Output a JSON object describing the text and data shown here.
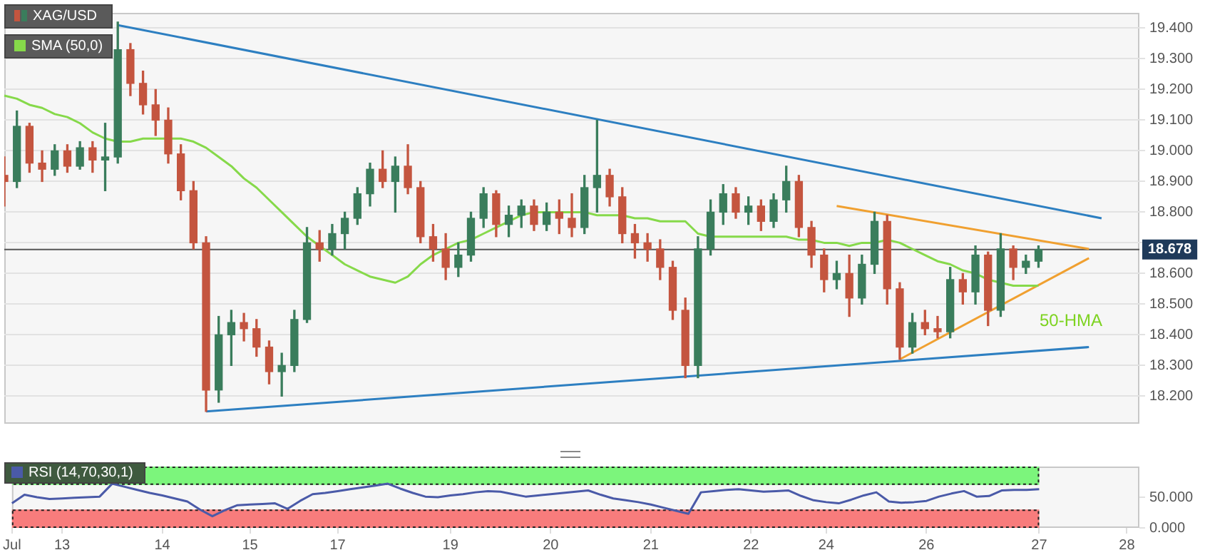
{
  "chart_data": [
    {
      "type": "candlestick",
      "ylim": [
        18.11,
        19.45
      ],
      "categories": [
        null,
        null,
        null,
        null,
        null,
        null,
        null,
        null,
        null,
        null,
        null,
        null,
        null,
        null,
        null,
        null,
        null,
        null,
        null,
        null,
        null,
        null,
        null,
        null,
        null,
        null,
        null,
        null,
        null,
        null,
        null,
        null,
        null,
        null,
        null,
        null,
        null,
        null,
        null,
        null,
        null,
        null,
        null,
        null,
        null,
        null,
        null,
        null,
        null,
        null,
        null,
        null,
        null,
        null,
        null,
        null,
        null,
        null,
        null,
        null,
        null,
        null,
        null,
        null,
        null,
        null,
        null,
        null,
        null,
        null,
        null,
        null,
        null,
        null,
        null,
        null,
        null,
        null,
        null,
        null,
        null,
        null,
        null,
        null,
        null,
        null,
        null,
        null,
        null,
        null,
        null
      ],
      "yticks": [
        {
          "value": 18.2,
          "label": "18.200"
        },
        {
          "value": 18.3,
          "label": "18.300"
        },
        {
          "value": 18.4,
          "label": "18.400"
        },
        {
          "value": 18.5,
          "label": "18.500"
        },
        {
          "value": 18.6,
          "label": "18.600"
        },
        {
          "value": 18.7,
          "label": null
        },
        {
          "value": 18.8,
          "label": "18.800"
        },
        {
          "value": 18.9,
          "label": "18.900"
        },
        {
          "value": 19.0,
          "label": "19.000"
        },
        {
          "value": 19.1,
          "label": "19.100"
        },
        {
          "value": 19.2,
          "label": "19.200"
        },
        {
          "value": 19.3,
          "label": "19.300"
        },
        {
          "value": 19.4,
          "label": "19.400"
        }
      ],
      "tick_labels": "y",
      "grid": "y",
      "legend": "top left",
      "series": [
        {
          "type": "candlestick",
          "name": "XAG/USD",
          "ohlc": [
            [
              18.92,
              18.98,
              18.82,
              18.9
            ],
            [
              18.9,
              19.13,
              18.88,
              19.08
            ],
            [
              19.08,
              19.09,
              18.93,
              18.96
            ],
            [
              18.96,
              19.0,
              18.9,
              18.94
            ],
            [
              18.94,
              19.02,
              18.92,
              19.0
            ],
            [
              19.0,
              19.02,
              18.93,
              18.95
            ],
            [
              18.95,
              19.03,
              18.94,
              19.01
            ],
            [
              19.01,
              19.03,
              18.93,
              18.97
            ],
            [
              18.97,
              19.09,
              18.87,
              18.98
            ],
            [
              18.98,
              19.42,
              18.96,
              19.33
            ],
            [
              19.33,
              19.35,
              19.18,
              19.22
            ],
            [
              19.22,
              19.26,
              19.12,
              19.15
            ],
            [
              19.15,
              19.2,
              19.05,
              19.1
            ],
            [
              19.1,
              19.14,
              18.96,
              18.99
            ],
            [
              18.99,
              19.02,
              18.84,
              18.87
            ],
            [
              18.87,
              18.9,
              18.68,
              18.7
            ],
            [
              18.7,
              18.72,
              18.15,
              18.22
            ],
            [
              18.22,
              18.46,
              18.18,
              18.4
            ],
            [
              18.4,
              18.48,
              18.3,
              18.44
            ],
            [
              18.44,
              18.47,
              18.38,
              18.42
            ],
            [
              18.42,
              18.45,
              18.33,
              18.36
            ],
            [
              18.36,
              18.38,
              18.24,
              18.28
            ],
            [
              18.28,
              18.34,
              18.2,
              18.3
            ],
            [
              18.3,
              18.48,
              18.28,
              18.45
            ],
            [
              18.45,
              18.75,
              18.44,
              18.7
            ],
            [
              18.7,
              18.74,
              18.64,
              18.68
            ],
            [
              18.68,
              18.76,
              18.66,
              18.73
            ],
            [
              18.73,
              18.8,
              18.68,
              18.78
            ],
            [
              18.78,
              18.88,
              18.76,
              18.86
            ],
            [
              18.86,
              18.96,
              18.82,
              18.94
            ],
            [
              18.94,
              19.0,
              18.88,
              18.9
            ],
            [
              18.9,
              18.98,
              18.8,
              18.95
            ],
            [
              18.95,
              19.02,
              18.86,
              18.88
            ],
            [
              18.88,
              18.9,
              18.7,
              18.72
            ],
            [
              18.72,
              18.76,
              18.64,
              18.68
            ],
            [
              18.68,
              18.73,
              18.58,
              18.62
            ],
            [
              18.62,
              18.7,
              18.59,
              18.66
            ],
            [
              18.66,
              18.8,
              18.64,
              18.78
            ],
            [
              18.78,
              18.88,
              18.75,
              18.86
            ],
            [
              18.86,
              18.87,
              18.72,
              18.76
            ],
            [
              18.76,
              18.82,
              18.72,
              18.79
            ],
            [
              18.79,
              18.84,
              18.75,
              18.82
            ],
            [
              18.82,
              18.84,
              18.74,
              18.76
            ],
            [
              18.76,
              18.83,
              18.74,
              18.8
            ],
            [
              18.8,
              18.84,
              18.73,
              18.78
            ],
            [
              18.78,
              18.86,
              18.72,
              18.75
            ],
            [
              18.75,
              18.92,
              18.73,
              18.88
            ],
            [
              18.88,
              19.1,
              18.8,
              18.92
            ],
            [
              18.92,
              18.94,
              18.82,
              18.85
            ],
            [
              18.85,
              18.88,
              18.7,
              18.73
            ],
            [
              18.73,
              18.76,
              18.65,
              18.7
            ],
            [
              18.7,
              18.73,
              18.64,
              18.68
            ],
            [
              18.68,
              18.71,
              18.58,
              18.62
            ],
            [
              18.62,
              18.64,
              18.45,
              18.48
            ],
            [
              18.48,
              18.52,
              18.26,
              18.3
            ],
            [
              18.3,
              18.72,
              18.26,
              18.68
            ],
            [
              18.68,
              18.84,
              18.66,
              18.8
            ],
            [
              18.8,
              18.89,
              18.76,
              18.86
            ],
            [
              18.86,
              18.88,
              18.78,
              18.8
            ],
            [
              18.8,
              18.85,
              18.76,
              18.82
            ],
            [
              18.82,
              18.84,
              18.74,
              18.77
            ],
            [
              18.77,
              18.86,
              18.75,
              18.84
            ],
            [
              18.84,
              18.95,
              18.8,
              18.9
            ],
            [
              18.9,
              18.92,
              18.72,
              18.75
            ],
            [
              18.75,
              18.77,
              18.62,
              18.66
            ],
            [
              18.66,
              18.68,
              18.54,
              18.58
            ],
            [
              18.58,
              18.64,
              18.55,
              18.6
            ],
            [
              18.6,
              18.66,
              18.46,
              18.52
            ],
            [
              18.52,
              18.66,
              18.5,
              18.63
            ],
            [
              18.63,
              18.8,
              18.6,
              18.77
            ],
            [
              18.77,
              18.79,
              18.5,
              18.55
            ],
            [
              18.55,
              18.57,
              18.32,
              18.36
            ],
            [
              18.36,
              18.47,
              18.34,
              18.44
            ],
            [
              18.44,
              18.48,
              18.4,
              18.42
            ],
            [
              18.42,
              18.46,
              18.39,
              18.41
            ],
            [
              18.41,
              18.62,
              18.39,
              18.58
            ],
            [
              18.58,
              18.6,
              18.5,
              18.54
            ],
            [
              18.54,
              18.69,
              18.5,
              18.66
            ],
            [
              18.66,
              18.67,
              18.43,
              18.48
            ],
            [
              18.48,
              18.73,
              18.46,
              18.68
            ],
            [
              18.68,
              18.69,
              18.58,
              18.62
            ],
            [
              18.62,
              18.66,
              18.6,
              18.64
            ],
            [
              18.64,
              18.69,
              18.62,
              18.678
            ],
            null,
            null,
            null,
            null,
            null,
            null,
            null,
            null
          ],
          "colors": [
            "#c4553f",
            "#3a7d5c",
            "#c4553f",
            "#c4553f",
            "#3a7d5c",
            "#c4553f",
            "#3a7d5c",
            "#c4553f",
            "#3a7d5c",
            "#3a7d5c",
            "#c4553f",
            "#c4553f",
            "#c4553f",
            "#c4553f",
            "#c4553f",
            "#c4553f",
            "#c4553f",
            "#3a7d5c",
            "#3a7d5c",
            "#c4553f",
            "#c4553f",
            "#c4553f",
            "#3a7d5c",
            "#3a7d5c",
            "#3a7d5c",
            "#c4553f",
            "#3a7d5c",
            "#3a7d5c",
            "#3a7d5c",
            "#3a7d5c",
            "#c4553f",
            "#3a7d5c",
            "#c4553f",
            "#c4553f",
            "#c4553f",
            "#c4553f",
            "#3a7d5c",
            "#3a7d5c",
            "#3a7d5c",
            "#c4553f",
            "#3a7d5c",
            "#3a7d5c",
            "#c4553f",
            "#3a7d5c",
            "#c4553f",
            "#c4553f",
            "#3a7d5c",
            "#3a7d5c",
            "#c4553f",
            "#c4553f",
            "#c4553f",
            "#c4553f",
            "#c4553f",
            "#c4553f",
            "#c4553f",
            "#3a7d5c",
            "#3a7d5c",
            "#3a7d5c",
            "#c4553f",
            "#3a7d5c",
            "#c4553f",
            "#3a7d5c",
            "#3a7d5c",
            "#c4553f",
            "#c4553f",
            "#c4553f",
            "#3a7d5c",
            "#c4553f",
            "#3a7d5c",
            "#3a7d5c",
            "#c4553f",
            "#c4553f",
            "#3a7d5c",
            "#c4553f",
            "#c4553f",
            "#3a7d5c",
            "#c4553f",
            "#3a7d5c",
            "#c4553f",
            "#3a7d5c",
            "#c4553f",
            "#3a7d5c",
            "#3a7d5c",
            null,
            null,
            null,
            null,
            null,
            null,
            null,
            null
          ]
        },
        {
          "type": "line",
          "name": "SMA (50,0)",
          "color": "#86d94a",
          "values": [
            19.18,
            19.17,
            19.15,
            19.14,
            19.12,
            19.11,
            19.09,
            19.06,
            19.04,
            19.03,
            19.03,
            19.04,
            19.04,
            19.04,
            19.04,
            19.03,
            19.01,
            18.98,
            18.95,
            18.91,
            18.88,
            18.84,
            18.8,
            18.76,
            18.72,
            18.69,
            18.66,
            18.63,
            18.61,
            18.59,
            18.58,
            18.57,
            18.59,
            18.63,
            18.66,
            18.68,
            18.7,
            18.71,
            18.73,
            18.75,
            18.77,
            18.79,
            18.8,
            18.8,
            18.8,
            18.8,
            18.8,
            18.79,
            18.79,
            18.79,
            18.78,
            18.78,
            18.77,
            18.77,
            18.77,
            18.73,
            18.72,
            18.72,
            18.72,
            18.72,
            18.72,
            18.72,
            18.72,
            18.71,
            18.71,
            18.7,
            18.7,
            18.69,
            18.7,
            18.7,
            18.71,
            18.7,
            18.68,
            18.66,
            18.64,
            18.63,
            18.61,
            18.6,
            18.58,
            18.57,
            18.56,
            18.56,
            18.56,
            null,
            null,
            null,
            null,
            null,
            null,
            null,
            null
          ]
        },
        {
          "type": "line",
          "color": "#2d7fc1",
          "values": [
            null,
            null,
            null,
            null,
            null,
            null,
            null,
            null,
            null,
            19.41,
            null,
            null,
            null,
            null,
            null,
            null,
            null,
            null,
            null,
            null,
            null,
            null,
            null,
            null,
            null,
            null,
            null,
            null,
            null,
            null,
            null,
            null,
            null,
            null,
            null,
            null,
            null,
            null,
            null,
            null,
            null,
            null,
            null,
            null,
            null,
            null,
            null,
            null,
            null,
            null,
            null,
            null,
            null,
            null,
            null,
            null,
            null,
            null,
            null,
            null,
            null,
            null,
            null,
            null,
            null,
            null,
            null,
            null,
            null,
            null,
            null,
            null,
            null,
            null,
            null,
            null,
            null,
            null,
            null,
            null,
            null,
            null,
            null,
            null,
            null,
            null,
            null,
            18.78,
            null,
            null,
            null
          ]
        },
        {
          "type": "line",
          "color": "#2d7fc1",
          "values": [
            null,
            null,
            null,
            null,
            null,
            null,
            null,
            null,
            null,
            null,
            null,
            null,
            null,
            null,
            null,
            null,
            18.15,
            null,
            null,
            null,
            null,
            null,
            null,
            null,
            null,
            null,
            null,
            null,
            null,
            null,
            null,
            null,
            null,
            null,
            null,
            null,
            null,
            null,
            null,
            null,
            null,
            null,
            null,
            null,
            null,
            null,
            null,
            null,
            null,
            null,
            null,
            null,
            null,
            null,
            null,
            null,
            null,
            null,
            null,
            null,
            null,
            null,
            null,
            null,
            null,
            null,
            null,
            null,
            null,
            null,
            null,
            null,
            null,
            null,
            null,
            null,
            null,
            null,
            null,
            null,
            null,
            null,
            null,
            null,
            null,
            null,
            18.36,
            null,
            null,
            null,
            null
          ]
        },
        {
          "type": "line",
          "color": "#f0a030",
          "values": [
            null,
            null,
            null,
            null,
            null,
            null,
            null,
            null,
            null,
            null,
            null,
            null,
            null,
            null,
            null,
            null,
            null,
            null,
            null,
            null,
            null,
            null,
            null,
            null,
            null,
            null,
            null,
            null,
            null,
            null,
            null,
            null,
            null,
            null,
            null,
            null,
            null,
            null,
            null,
            null,
            null,
            null,
            null,
            null,
            null,
            null,
            null,
            null,
            null,
            null,
            null,
            null,
            null,
            null,
            null,
            null,
            null,
            null,
            null,
            null,
            null,
            null,
            null,
            null,
            null,
            null,
            18.82,
            null,
            null,
            null,
            null,
            null,
            null,
            null,
            null,
            null,
            null,
            null,
            null,
            null,
            null,
            null,
            null,
            null,
            null,
            null,
            18.68,
            null,
            null,
            null,
            null
          ]
        },
        {
          "type": "line",
          "color": "#f0a030",
          "values": [
            null,
            null,
            null,
            null,
            null,
            null,
            null,
            null,
            null,
            null,
            null,
            null,
            null,
            null,
            null,
            null,
            null,
            null,
            null,
            null,
            null,
            null,
            null,
            null,
            null,
            null,
            null,
            null,
            null,
            null,
            null,
            null,
            null,
            null,
            null,
            null,
            null,
            null,
            null,
            null,
            null,
            null,
            null,
            null,
            null,
            null,
            null,
            null,
            null,
            null,
            null,
            null,
            null,
            null,
            null,
            null,
            null,
            null,
            null,
            null,
            null,
            null,
            null,
            null,
            null,
            null,
            null,
            null,
            null,
            null,
            null,
            18.32,
            null,
            null,
            null,
            null,
            null,
            null,
            null,
            null,
            null,
            null,
            null,
            null,
            null,
            null,
            18.65,
            null,
            null,
            null,
            null
          ]
        }
      ],
      "ref_lines": [
        {
          "axis": "y",
          "value": 18.678,
          "label": "18.678",
          "color": "#555555"
        }
      ],
      "annotations": [
        "50-HMA"
      ]
    },
    {
      "type": "line",
      "ylim": [
        0,
        100
      ],
      "categories": [
        "Jul",
        null,
        null,
        null,
        "13",
        null,
        null,
        null,
        null,
        null,
        null,
        null,
        "14",
        null,
        null,
        null,
        null,
        null,
        null,
        "15",
        null,
        null,
        null,
        null,
        null,
        null,
        "17",
        null,
        null,
        null,
        null,
        null,
        null,
        null,
        null,
        "19",
        null,
        null,
        null,
        null,
        null,
        null,
        null,
        "20",
        null,
        null,
        null,
        null,
        null,
        null,
        null,
        "21",
        null,
        null,
        null,
        null,
        null,
        null,
        null,
        "22",
        null,
        null,
        null,
        null,
        null,
        "24",
        null,
        null,
        null,
        null,
        null,
        null,
        null,
        "26",
        null,
        null,
        null,
        null,
        null,
        null,
        null,
        null,
        "27",
        null,
        null,
        null,
        null,
        null,
        null,
        "28",
        null
      ],
      "yticks": [
        {
          "value": 0,
          "label": "0.000"
        },
        {
          "value": 50,
          "label": "50.000"
        }
      ],
      "legend": "top left",
      "series": [
        {
          "name": "RSI (14,70,30,1)",
          "color": "#4a5aa8",
          "values": [
            40,
            54,
            50,
            47,
            48,
            49,
            50,
            51,
            72,
            67,
            62,
            57,
            53,
            48,
            43,
            30,
            19,
            29,
            37,
            38,
            39,
            40,
            31,
            44,
            55,
            57,
            60,
            63,
            66,
            69,
            72,
            64,
            57,
            51,
            50,
            53,
            55,
            58,
            60,
            59,
            55,
            51,
            53,
            55,
            57,
            59,
            61,
            54,
            48,
            45,
            42,
            38,
            33,
            28,
            23,
            58,
            60,
            62,
            63,
            61,
            59,
            60,
            61,
            52,
            45,
            42,
            40,
            46,
            53,
            58,
            43,
            41,
            42,
            44,
            51,
            56,
            60,
            51,
            52,
            61,
            62,
            62,
            63,
            null,
            null,
            null,
            null,
            null,
            null,
            null,
            null
          ]
        }
      ],
      "bands": [
        {
          "axis": "y",
          "from": 70,
          "to": 100,
          "color": "#7cf57c"
        },
        {
          "axis": "y",
          "from": 0,
          "to": 30,
          "color": "#f87c7c"
        }
      ]
    }
  ]
}
